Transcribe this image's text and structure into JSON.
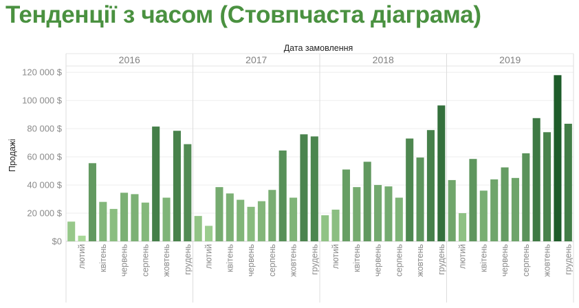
{
  "title": "Тенденції з часом (Стовпчаста діаграма)",
  "chart_data": {
    "type": "bar",
    "title": "Тенденції з часом (Стовпчаста діаграма)",
    "xlabel": "Дата замовлення",
    "ylabel": "Продажі",
    "ylim": [
      0,
      125000
    ],
    "yticks": [
      0,
      20000,
      40000,
      60000,
      80000,
      100000,
      120000
    ],
    "ytick_labels": [
      "$0",
      "20 000 $",
      "40 000 $",
      "60 000 $",
      "80 000 $",
      "100 000 $",
      "120 000 $"
    ],
    "grid": true,
    "color_scale": [
      "#a8d898",
      "#1e5c2a"
    ],
    "month_labels": [
      "лютий",
      "квітень",
      "червень",
      "серпень",
      "жовтень",
      "грудень"
    ],
    "years": [
      {
        "year": "2016",
        "values": [
          14000,
          4000,
          55500,
          28000,
          23000,
          34500,
          33500,
          27500,
          81500,
          31000,
          78500,
          69000
        ]
      },
      {
        "year": "2017",
        "values": [
          18000,
          11000,
          38500,
          34000,
          29500,
          24500,
          28500,
          36500,
          64500,
          31000,
          76000,
          74500
        ]
      },
      {
        "year": "2018",
        "values": [
          18500,
          22500,
          51000,
          38500,
          56500,
          40000,
          39000,
          31000,
          73000,
          59500,
          79000,
          96500
        ]
      },
      {
        "year": "2019",
        "values": [
          43500,
          20000,
          58500,
          36000,
          44000,
          52500,
          45000,
          62500,
          87500,
          77500,
          118000,
          83500
        ]
      }
    ]
  }
}
